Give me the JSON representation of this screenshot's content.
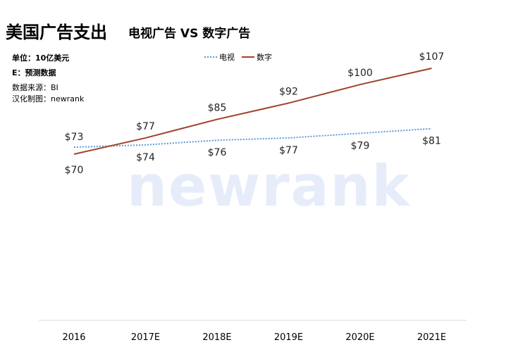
{
  "header": {
    "title": "美国广告支出",
    "subtitle": "电视广告 VS 数字广告"
  },
  "notes": {
    "unit": "单位：10亿美元",
    "estimate": "E：预测数据",
    "source": "数据来源：BI",
    "credit": "汉化制图：newrank"
  },
  "watermark": "newrank",
  "colors": {
    "tv": "#5b9bd5",
    "digital": "#a0422a",
    "axis": "#d9d9d9"
  },
  "chart_data": {
    "type": "line",
    "title": "美国广告支出",
    "subtitle": "电视广告 VS 数字广告",
    "categories": [
      "2016",
      "2017E",
      "2018E",
      "2019E",
      "2020E",
      "2021E"
    ],
    "series": [
      {
        "name": "电视",
        "values": [
          73,
          74,
          76,
          77,
          79,
          81
        ],
        "labels": [
          "$73",
          "$74",
          "$76",
          "$77",
          "$79",
          "$81"
        ],
        "style": "dotted"
      },
      {
        "name": "数字",
        "values": [
          70,
          77,
          85,
          92,
          100,
          107
        ],
        "labels": [
          "$70",
          "$77",
          "$85",
          "$92",
          "$100",
          "$107"
        ],
        "style": "solid"
      }
    ],
    "ylim": [
      0,
      107
    ],
    "grid": false,
    "legend": "top-center"
  }
}
